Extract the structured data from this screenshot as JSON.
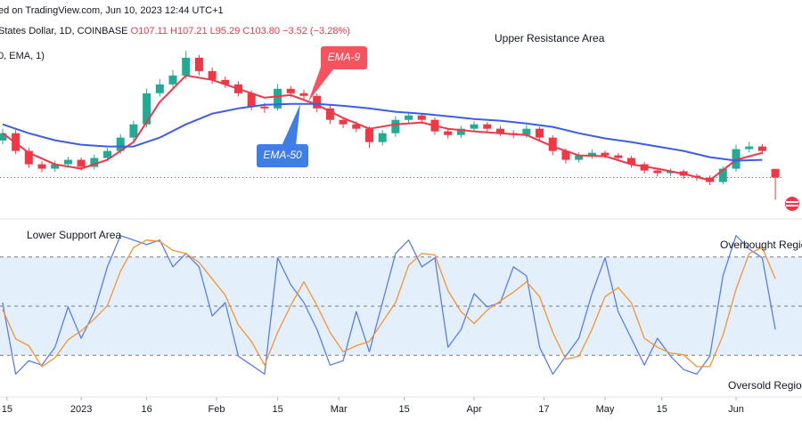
{
  "header": {
    "source": "ed on TradingView.com, Jun 10, 2023 12:44 UTC+1",
    "symbol": "States Dollar, 1D, COINBASE",
    "open": "O107.11",
    "high": "H107.21",
    "low": "L95.29",
    "close": "C103.80",
    "change": "−3.52 (−3.28%)",
    "indicator": "0, EMA, 1)"
  },
  "chart_data": [
    {
      "type": "candlestick",
      "x": [
        0,
        3,
        6,
        9,
        12,
        15,
        18,
        21,
        24,
        27,
        30,
        33,
        36,
        39,
        42,
        45,
        48,
        51,
        54,
        57,
        60,
        63,
        66,
        69,
        72,
        75,
        78,
        81,
        84,
        87,
        90,
        93,
        96,
        99,
        102,
        105,
        108,
        111,
        114,
        117,
        120,
        123,
        126,
        129,
        132,
        135,
        138,
        141,
        144,
        147,
        150,
        153,
        156,
        159,
        162,
        165,
        168,
        171,
        174,
        177
      ],
      "open": [
        118.0,
        120.8,
        114.0,
        108.9,
        107.2,
        108.9,
        110.6,
        107.9,
        111.3,
        114.0,
        119.1,
        124.2,
        136.1,
        139.5,
        142.9,
        149.7,
        144.6,
        141.2,
        139.5,
        136.1,
        131.0,
        130.3,
        137.8,
        136.1,
        135.1,
        130.3,
        125.9,
        124.2,
        122.5,
        117.4,
        120.8,
        125.9,
        127.6,
        125.9,
        121.5,
        120.1,
        122.5,
        124.2,
        122.5,
        120.8,
        120.1,
        122.5,
        119.1,
        114.0,
        110.6,
        112.3,
        113.3,
        112.3,
        111.3,
        108.9,
        106.5,
        105.5,
        106.2,
        104.5,
        103.8,
        102.1,
        107.2,
        114.7,
        115.7,
        107.11
      ],
      "high": [
        122.5,
        122.0,
        115.2,
        110.0,
        110.3,
        111.8,
        111.5,
        112.6,
        115.1,
        120.4,
        125.6,
        137.9,
        141.6,
        145.0,
        152.3,
        150.8,
        146.0,
        142.5,
        140.7,
        137.2,
        132.4,
        139.6,
        138.9,
        137.5,
        136.0,
        131.4,
        127.0,
        125.3,
        123.4,
        122.1,
        127.3,
        129.0,
        128.5,
        126.8,
        122.6,
        123.7,
        125.4,
        125.0,
        123.6,
        121.9,
        123.9,
        123.2,
        120.0,
        115.0,
        113.5,
        114.6,
        114.1,
        113.2,
        112.1,
        109.8,
        107.4,
        107.3,
        106.9,
        105.3,
        104.6,
        108.1,
        116.3,
        117.5,
        116.6,
        107.21
      ],
      "low": [
        116.6,
        112.8,
        107.5,
        105.8,
        106.0,
        107.6,
        106.5,
        106.9,
        110.2,
        112.9,
        117.8,
        123.0,
        134.8,
        138.3,
        141.5,
        143.0,
        139.7,
        138.1,
        134.9,
        129.5,
        128.6,
        129.4,
        134.6,
        133.7,
        128.9,
        124.3,
        122.8,
        121.2,
        115.2,
        116.1,
        119.4,
        124.6,
        124.5,
        120.2,
        118.8,
        119.0,
        121.3,
        121.1,
        119.7,
        118.9,
        119.0,
        117.6,
        112.4,
        109.2,
        109.5,
        111.0,
        111.2,
        110.1,
        107.6,
        105.3,
        104.2,
        104.4,
        103.3,
        102.6,
        100.9,
        101.2,
        106.0,
        113.4,
        112.7,
        95.29
      ],
      "close": [
        120.8,
        114.0,
        108.9,
        107.2,
        108.9,
        110.6,
        107.9,
        111.3,
        114.0,
        119.1,
        124.2,
        136.1,
        139.5,
        142.9,
        149.7,
        144.6,
        141.2,
        139.5,
        136.1,
        131.0,
        130.3,
        137.8,
        136.1,
        135.1,
        130.3,
        125.9,
        124.2,
        122.5,
        117.4,
        120.8,
        125.9,
        127.6,
        125.9,
        121.5,
        120.1,
        122.5,
        124.2,
        122.5,
        120.8,
        120.1,
        122.5,
        119.1,
        114.0,
        110.6,
        112.3,
        113.3,
        112.3,
        111.3,
        108.9,
        106.5,
        105.5,
        106.2,
        104.5,
        103.8,
        102.1,
        107.2,
        114.7,
        115.7,
        114.0,
        103.8
      ],
      "up_color": "#22ab94",
      "down_color": "#f23645",
      "ema_x": [
        0,
        6,
        12,
        18,
        24,
        30,
        36,
        42,
        48,
        54,
        60,
        66,
        72,
        78,
        84,
        90,
        96,
        102,
        108,
        114,
        120,
        126,
        132,
        138,
        144,
        150,
        156,
        162,
        168,
        174
      ],
      "lines": [
        {
          "name": "EMA-9",
          "color": "#f23645",
          "values": [
            120.8,
            113.3,
            108.9,
            107.2,
            110.6,
            117.4,
            132.7,
            142.9,
            141.2,
            137.8,
            134.4,
            135.4,
            131.7,
            126.6,
            122.5,
            124.2,
            124.9,
            122.5,
            121.5,
            120.8,
            120.1,
            115.7,
            112.3,
            112.0,
            108.9,
            107.2,
            105.2,
            102.8,
            110.6,
            113.3
          ]
        },
        {
          "name": "EMA-50",
          "color": "#3c5ee6",
          "values": [
            124.2,
            120.8,
            118.1,
            116.4,
            115.7,
            115.7,
            119.1,
            124.2,
            128.3,
            130.3,
            131.7,
            132.0,
            132.0,
            131.3,
            130.3,
            129.0,
            128.3,
            127.3,
            126.2,
            125.6,
            124.5,
            123.2,
            120.8,
            118.8,
            117.4,
            115.7,
            114.0,
            111.6,
            110.3,
            110.6
          ]
        }
      ],
      "xlim": [
        -0.6,
        183.1
      ],
      "ylim": [
        90,
        165
      ],
      "annotations": [
        "Upper Resistance Area"
      ]
    },
    {
      "type": "line",
      "x": [
        0,
        3,
        6,
        9,
        12,
        15,
        18,
        21,
        24,
        27,
        30,
        33,
        36,
        39,
        42,
        45,
        48,
        51,
        54,
        57,
        60,
        63,
        66,
        69,
        72,
        75,
        78,
        81,
        84,
        87,
        90,
        93,
        96,
        99,
        102,
        105,
        108,
        111,
        114,
        117,
        120,
        123,
        126,
        129,
        132,
        135,
        138,
        141,
        144,
        147,
        150,
        153,
        156,
        159,
        162,
        165,
        168,
        171,
        174,
        177
      ],
      "series": [
        {
          "color": "#5b7cf0",
          "values": [
            52.2,
            8.5,
            16.7,
            14.0,
            24.9,
            49.5,
            30.4,
            46.7,
            74.0,
            93.1,
            90.4,
            87.6,
            90.4,
            74.0,
            82.2,
            74.0,
            44.0,
            52.2,
            19.4,
            14.0,
            8.5,
            79.5,
            63.1,
            52.2,
            35.8,
            14.0,
            16.7,
            46.7,
            22.2,
            52.2,
            82.2,
            90.4,
            74.0,
            79.5,
            24.9,
            35.8,
            57.6,
            49.5,
            52.2,
            74.0,
            68.5,
            24.9,
            8.5,
            19.4,
            30.4,
            57.6,
            79.5,
            46.7,
            30.4,
            14.0,
            30.4,
            19.4,
            11.3,
            8.5,
            19.4,
            68.5,
            93.1,
            84.9,
            79.5,
            35.8
          ]
        },
        {
          "color": "#f7932f",
          "values": [
            48,
            30,
            25.8,
            13.1,
            18.5,
            29.5,
            34.9,
            42.2,
            50.4,
            71.3,
            85.8,
            90.4,
            89.5,
            84.0,
            82.2,
            76.7,
            66.7,
            56.7,
            38.5,
            28.5,
            14.0,
            34.0,
            50.4,
            64.9,
            50.4,
            34.0,
            22.2,
            25.8,
            28.5,
            40.4,
            52.2,
            74.9,
            82.2,
            81.3,
            59.5,
            46.7,
            39.4,
            47.6,
            53.1,
            58.6,
            64.9,
            55.8,
            34.0,
            17.6,
            19.4,
            35.8,
            55.8,
            61.3,
            52.2,
            30.4,
            24.9,
            21.3,
            20.3,
            13.1,
            13.1,
            32.2,
            60.4,
            82.2,
            85.8,
            66.7
          ]
        }
      ],
      "levels": [
        20,
        50,
        80
      ],
      "band_color": "#e3f0fc",
      "xlim": [
        -0.6,
        183.1
      ],
      "ylim": [
        0,
        100
      ],
      "xticks": [
        {
          "value": 1,
          "label": "15"
        },
        {
          "value": 18,
          "label": "2023"
        },
        {
          "value": 33,
          "label": "16"
        },
        {
          "value": 49,
          "label": "Feb"
        },
        {
          "value": 63,
          "label": "15"
        },
        {
          "value": 77,
          "label": "Mar"
        },
        {
          "value": 92,
          "label": "15"
        },
        {
          "value": 108,
          "label": "Apr"
        },
        {
          "value": 124,
          "label": "17"
        },
        {
          "value": 138,
          "label": "May"
        },
        {
          "value": 151,
          "label": "15"
        },
        {
          "value": 168,
          "label": "Jun"
        }
      ],
      "annotations": [
        "Lower Support Area",
        "Overbought Regio",
        "Oversold Regio"
      ]
    }
  ]
}
